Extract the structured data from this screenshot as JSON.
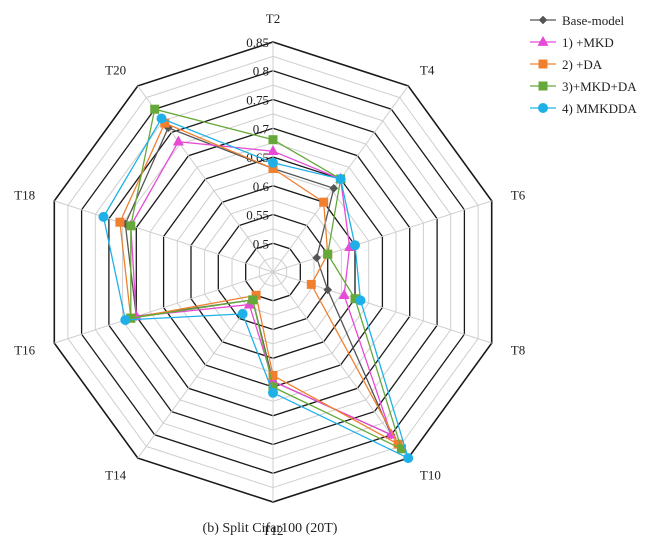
{
  "chart_data": {
    "type": "radar",
    "caption": "(b)  Split Cifar100 (20T)",
    "categories": [
      "T2",
      "T4",
      "T6",
      "T8",
      "T10",
      "T12",
      "T14",
      "T16",
      "T18",
      "T20"
    ],
    "rlim": [
      0.45,
      0.85
    ],
    "radial_ticks": [
      0.5,
      0.55,
      0.6,
      0.65,
      0.7,
      0.75,
      0.8,
      0.85
    ],
    "grid": true,
    "legend_position": "top-right",
    "series": [
      {
        "name": "Base-model",
        "color": "#555555",
        "marker": "diamond",
        "values": [
          0.63,
          0.63,
          0.53,
          0.55,
          0.8,
          0.64,
          0.51,
          0.7,
          0.72,
          0.76
        ]
      },
      {
        "name": "1) +MKD",
        "color": "#e64ad6",
        "marker": "triangle",
        "values": [
          0.66,
          0.65,
          0.59,
          0.58,
          0.8,
          0.64,
          0.52,
          0.7,
          0.71,
          0.73
        ]
      },
      {
        "name": "2) +DA",
        "color": "#f08030",
        "marker": "square",
        "values": [
          0.63,
          0.6,
          0.55,
          0.52,
          0.82,
          0.63,
          0.5,
          0.71,
          0.73,
          0.77
        ]
      },
      {
        "name": "3)+MKD+DA",
        "color": "#66a83a",
        "marker": "square",
        "values": [
          0.68,
          0.65,
          0.55,
          0.6,
          0.83,
          0.65,
          0.51,
          0.71,
          0.71,
          0.8
        ]
      },
      {
        "name": "4) MMKDDA",
        "color": "#20b0e8",
        "marker": "circle",
        "values": [
          0.64,
          0.65,
          0.6,
          0.61,
          0.85,
          0.66,
          0.54,
          0.72,
          0.76,
          0.78
        ]
      }
    ]
  }
}
